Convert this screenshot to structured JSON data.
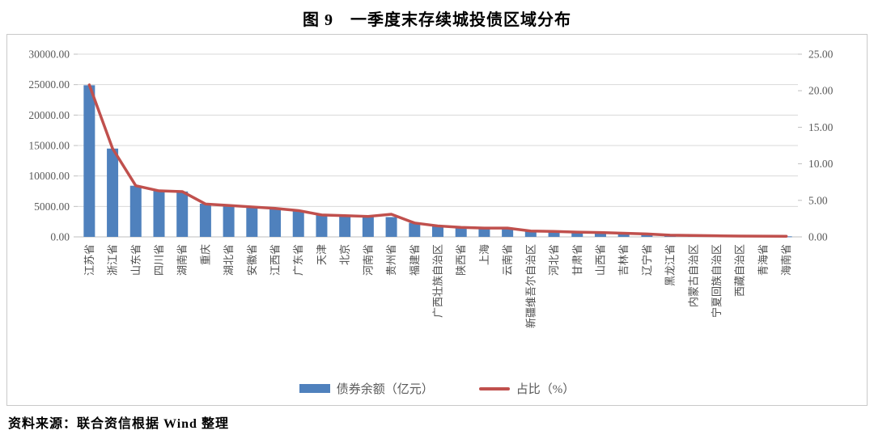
{
  "title": "图 9　一季度末存续城投债区域分布",
  "source": "资料来源：联合资信根据 Wind 整理",
  "legend": {
    "bar": "债券余额（亿元）",
    "line": "占比（%）"
  },
  "colors": {
    "bar": "#4f81bd",
    "line": "#c0504d",
    "grid": "#d9d9d9",
    "axis_line": "#bfbfbf",
    "tick_text": "#595959",
    "category_text": "#4d4d4d",
    "frame_border": "#c9c9c9"
  },
  "chart_data": {
    "type": "bar",
    "subtype": "bar+line combo, dual axis",
    "title": "图 9　一季度末存续城投债区域分布",
    "categories": [
      "江苏省",
      "浙江省",
      "山东省",
      "四川省",
      "湖南省",
      "重庆",
      "湖北省",
      "安徽省",
      "江西省",
      "广东省",
      "天津",
      "北京",
      "河南省",
      "贵州省",
      "福建省",
      "广西壮族自治区",
      "陕西省",
      "上海",
      "云南省",
      "新疆维吾尔自治区",
      "河北省",
      "甘肃省",
      "山西省",
      "吉林省",
      "辽宁省",
      "黑龙江省",
      "内蒙古自治区",
      "宁夏回族自治区",
      "西藏自治区",
      "青海省",
      "海南省"
    ],
    "series": [
      {
        "name": "债券余额（亿元）",
        "type": "bar",
        "axis": "left",
        "values": [
          24900,
          14500,
          8400,
          7550,
          7450,
          5450,
          5200,
          4900,
          4650,
          4300,
          3600,
          3500,
          3400,
          3250,
          2300,
          1750,
          1500,
          1450,
          1400,
          1000,
          900,
          780,
          700,
          640,
          450,
          280,
          230,
          180,
          130,
          110,
          90
        ]
      },
      {
        "name": "占比（%）",
        "type": "line",
        "axis": "right",
        "values": [
          20.8,
          12.1,
          7.0,
          6.3,
          6.2,
          4.5,
          4.3,
          4.1,
          3.9,
          3.6,
          3.0,
          2.9,
          2.8,
          3.1,
          1.9,
          1.5,
          1.3,
          1.2,
          1.2,
          0.8,
          0.75,
          0.65,
          0.6,
          0.5,
          0.4,
          0.23,
          0.19,
          0.15,
          0.11,
          0.09,
          0.08
        ]
      }
    ],
    "left_axis": {
      "min": 0,
      "max": 30000,
      "step": 5000,
      "tick_format": "0.00"
    },
    "right_axis": {
      "min": 0,
      "max": 25,
      "step": 5,
      "tick_format": "0.00"
    },
    "grid": true,
    "legend_position": "bottom",
    "category_label_rotation": -90
  }
}
